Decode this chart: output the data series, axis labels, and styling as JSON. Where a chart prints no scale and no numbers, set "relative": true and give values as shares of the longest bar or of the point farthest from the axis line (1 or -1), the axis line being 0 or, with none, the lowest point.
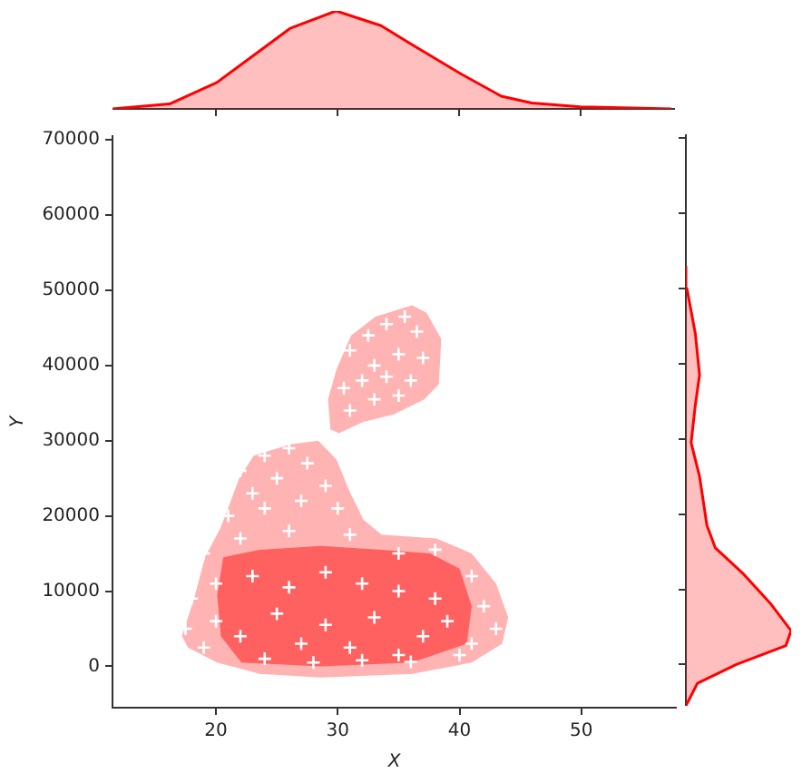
{
  "chart_data": [
    {
      "type": "area",
      "relative": true,
      "color": "#ff0000",
      "x": [
        11.5,
        16.2,
        20.1,
        23.6,
        26.1,
        29.9,
        33.6,
        36.1,
        40.0,
        43.5,
        46.0,
        50.0,
        57.5
      ],
      "values": [
        0,
        0.05,
        0.27,
        0.59,
        0.82,
        1,
        0.85,
        0.66,
        0.37,
        0.13,
        0.06,
        0.02,
        0
      ],
      "xlim": [
        11.5,
        57.8
      ],
      "xticks": [
        20,
        30,
        40,
        50
      ],
      "tick_labels": false,
      "grid": false,
      "legend": false
    },
    {
      "type": "scatter",
      "xlabel": "X",
      "ylabel": "Y",
      "xlim": [
        11.5,
        57.8
      ],
      "ylim": [
        -5500,
        70500
      ],
      "xticks": [
        20,
        30,
        40,
        50
      ],
      "yticks": [
        0,
        10000,
        20000,
        30000,
        40000,
        50000,
        60000,
        70000
      ],
      "grid": false,
      "legend": false,
      "series": [
        {
          "type": "area",
          "color": "#ffb3b3",
          "x": [
            17.2,
            18.2,
            19.1,
            20.4,
            21.1,
            21.9,
            23.1,
            26.1,
            28.4,
            29.9,
            30.9,
            32.1,
            33.6,
            38.1,
            41.0,
            43.0,
            44.0,
            43.5,
            41.0,
            36.1,
            28.6,
            23.6,
            20.1,
            17.7
          ],
          "values": [
            4000,
            9000,
            14500,
            18500,
            21500,
            25000,
            28000,
            29500,
            30000,
            27500,
            23500,
            19500,
            17500,
            17000,
            15000,
            11000,
            6500,
            3000,
            500,
            -1000,
            -1500,
            -1000,
            500,
            2500
          ]
        },
        {
          "type": "area",
          "color": "#ffb3b3",
          "x": [
            29.4,
            29.2,
            29.9,
            31.1,
            33.1,
            36.1,
            37.3,
            38.5,
            38.3,
            37.1,
            34.6,
            32.1,
            30.1
          ],
          "values": [
            31500,
            35500,
            39500,
            44000,
            46500,
            48000,
            47000,
            43500,
            37500,
            35500,
            33500,
            32500,
            31000
          ]
        },
        {
          "type": "area",
          "color": "#ff6060",
          "x": [
            20.6,
            23.6,
            28.6,
            33.6,
            37.6,
            40.0,
            41.0,
            40.6,
            36.1,
            28.6,
            22.1,
            20.4,
            20.1
          ],
          "values": [
            14500,
            15500,
            16000,
            15500,
            15000,
            13000,
            8000,
            3000,
            500,
            0,
            500,
            4000,
            9500
          ]
        },
        {
          "marker": "cross",
          "color": "#ffffff",
          "x": [
            31,
            32.5,
            34,
            35.5,
            36.5,
            33,
            35,
            37,
            30.5,
            32,
            34,
            36,
            31,
            33,
            35,
            22,
            24,
            26,
            27.5,
            25,
            23,
            29,
            21,
            24,
            27,
            30,
            19,
            22,
            26,
            31,
            35,
            38,
            41,
            18,
            20,
            23,
            26,
            29,
            32,
            35,
            38,
            42,
            17.5,
            20,
            22,
            25,
            27,
            29,
            31,
            33,
            35,
            37,
            39,
            41,
            43,
            24,
            28,
            32,
            36,
            40,
            19
          ],
          "values": [
            42000,
            44000,
            45500,
            46500,
            44500,
            40000,
            41500,
            41000,
            37000,
            38000,
            38500,
            38000,
            34000,
            35500,
            36000,
            26000,
            28000,
            29000,
            27000,
            25000,
            23000,
            24000,
            20000,
            21000,
            22000,
            21000,
            15000,
            17000,
            18000,
            17500,
            15000,
            15500,
            12000,
            9000,
            11000,
            12000,
            10500,
            12500,
            11000,
            10000,
            9000,
            8000,
            5000,
            6000,
            4000,
            7000,
            3000,
            5500,
            2500,
            6500,
            1500,
            4000,
            6000,
            3000,
            5000,
            1000,
            500,
            800,
            600,
            1500,
            2500
          ]
        }
      ]
    },
    {
      "type": "area",
      "orientation": "horizontal",
      "relative": true,
      "color": "#ff0000",
      "x": [
        -5500,
        -2500,
        0,
        2500,
        4500,
        8000,
        12000,
        15500,
        18500,
        25000,
        29500,
        34500,
        38500,
        44000,
        50000,
        53000
      ],
      "values": [
        0,
        0.11,
        0.48,
        0.95,
        1,
        0.81,
        0.55,
        0.28,
        0.2,
        0.13,
        0.05,
        0.09,
        0.13,
        0.09,
        0.01,
        0
      ],
      "ylim": [
        -5500,
        70500
      ],
      "yticks": [
        0,
        10000,
        20000,
        30000,
        40000,
        50000,
        60000,
        70000
      ],
      "tick_labels": false,
      "grid": false,
      "legend": false
    }
  ]
}
